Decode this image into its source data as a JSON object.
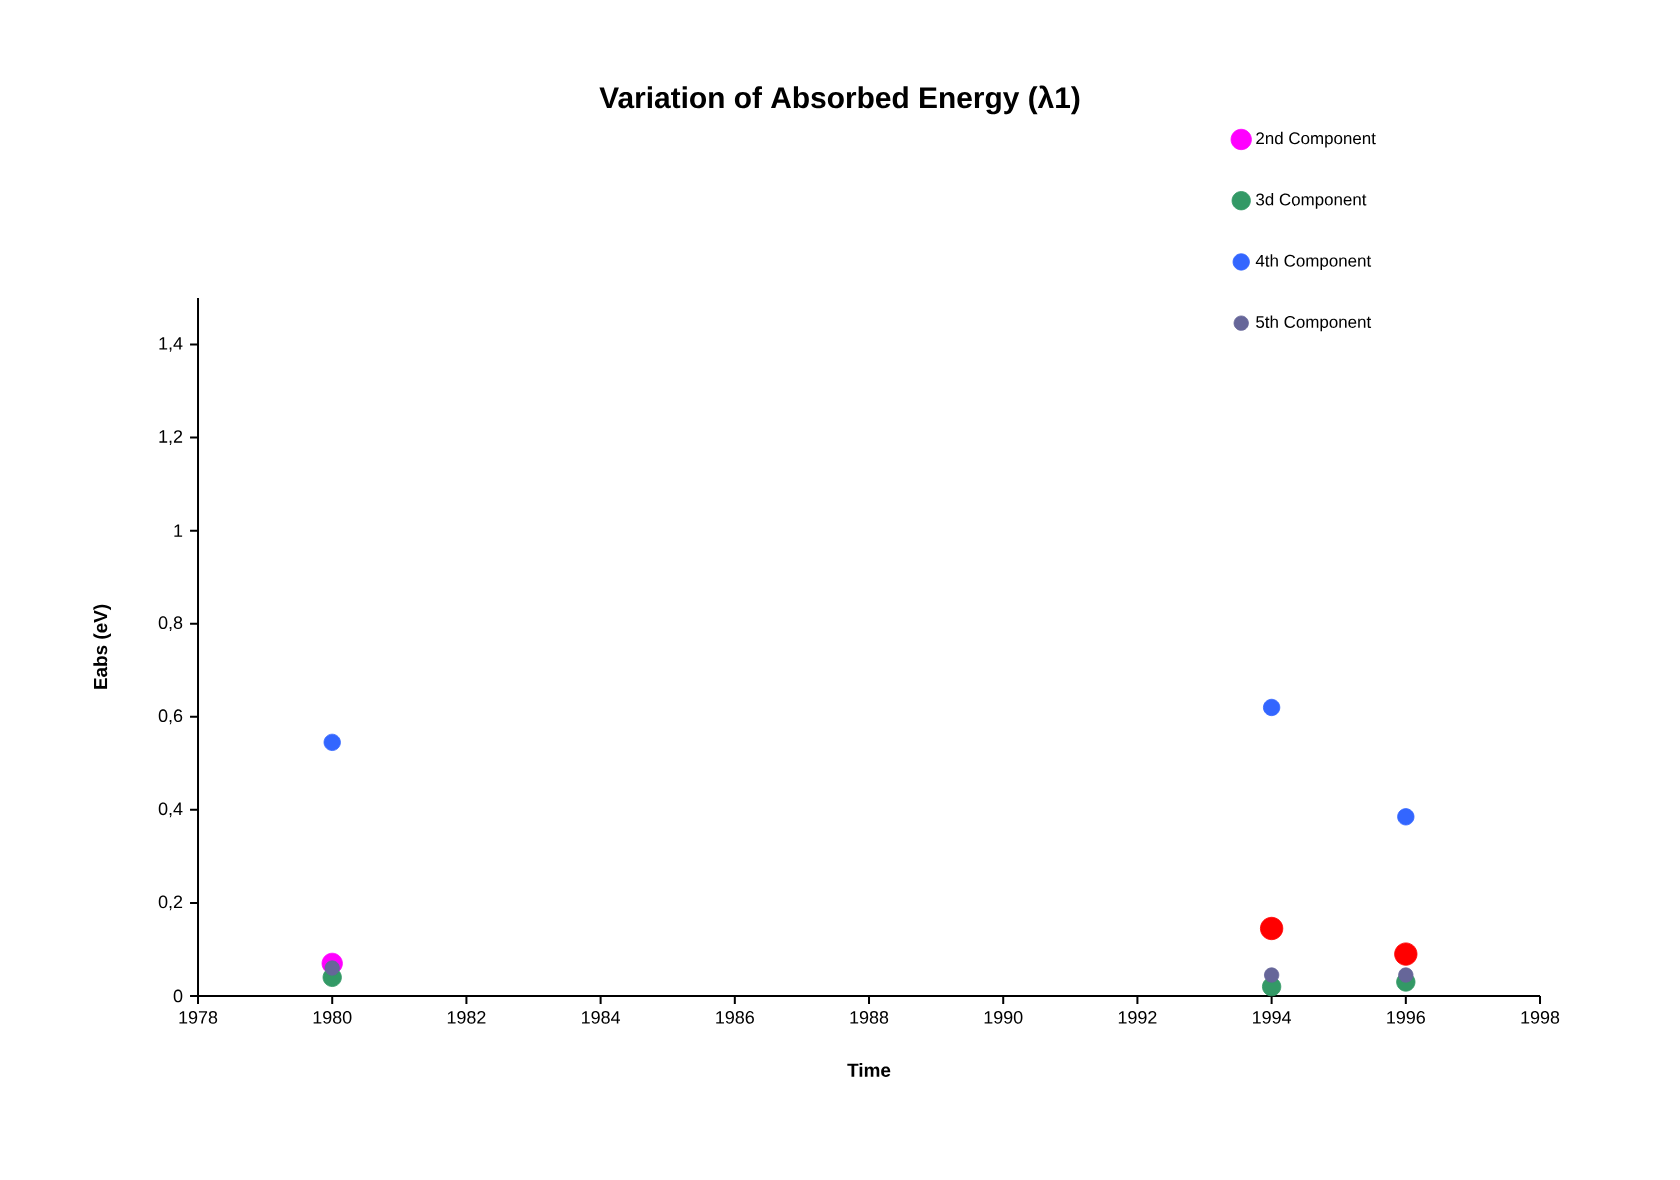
{
  "chart_data": {
    "type": "scatter",
    "title": "Variation of Absorbed Energy (λ1)",
    "xlabel": "Time",
    "ylabel": "Eabs  (eV)",
    "x": [
      1980,
      1994,
      1996
    ],
    "series": [
      {
        "color": "#ff0000",
        "values": [
          null,
          0.145,
          0.09
        ]
      },
      {
        "name": "2nd Component",
        "color": "#ff00ff",
        "values": [
          0.07,
          null,
          null
        ]
      },
      {
        "name": "3d Component",
        "color": "#339966",
        "values": [
          0.04,
          0.02,
          0.03
        ]
      },
      {
        "name": "4th Component",
        "color": "#3366ff",
        "values": [
          0.545,
          0.62,
          0.385
        ]
      },
      {
        "name": "5th Component",
        "color": "#666699",
        "values": [
          0.06,
          0.045,
          0.045
        ]
      }
    ],
    "xlim": [
      1978,
      1998
    ],
    "xticks": [
      1978,
      1980,
      1982,
      1984,
      1986,
      1988,
      1990,
      1992,
      1994,
      1996,
      1998
    ],
    "ylim": [
      0,
      1.5
    ],
    "yticks": [
      0,
      {
        "value": 0.2,
        "label": "0,2"
      },
      {
        "value": 0.4,
        "label": "0,4"
      },
      {
        "value": 0.6,
        "label": "0,6"
      },
      {
        "value": 0.8,
        "label": "0,8"
      },
      1,
      {
        "value": 1.2,
        "label": "1,2"
      },
      {
        "value": 1.4,
        "label": "1,4"
      }
    ],
    "marker": "circle",
    "grid": false,
    "legend": "top right"
  }
}
